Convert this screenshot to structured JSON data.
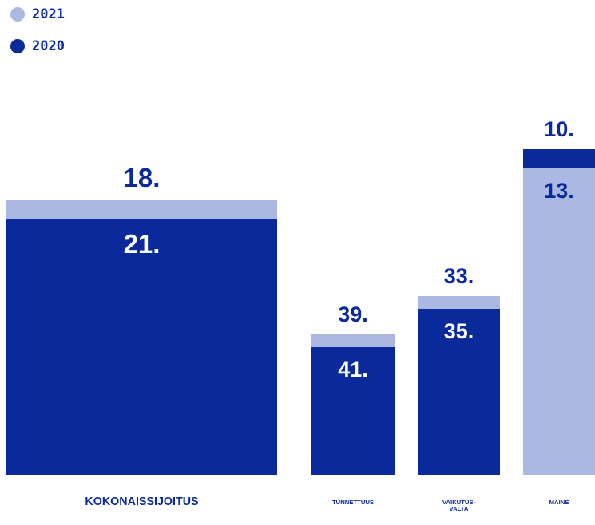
{
  "chart_data": {
    "type": "bar",
    "categories": [
      "KOKONAISSIJOITUS",
      "TUNNETTUUS",
      "VAIKUTUS-\nVALTA",
      "MAINE"
    ],
    "series": [
      {
        "name": "2021",
        "color": "#aab8e2",
        "values": [
          18,
          39,
          33,
          13
        ],
        "value_labels": [
          "18.",
          "39.",
          "33.",
          "13."
        ]
      },
      {
        "name": "2020",
        "color": "#0a2a9c",
        "values": [
          21,
          41,
          35,
          10
        ],
        "value_labels": [
          "21.",
          "41.",
          "35.",
          "10."
        ]
      }
    ],
    "ylim": [
      61,
      0
    ]
  }
}
